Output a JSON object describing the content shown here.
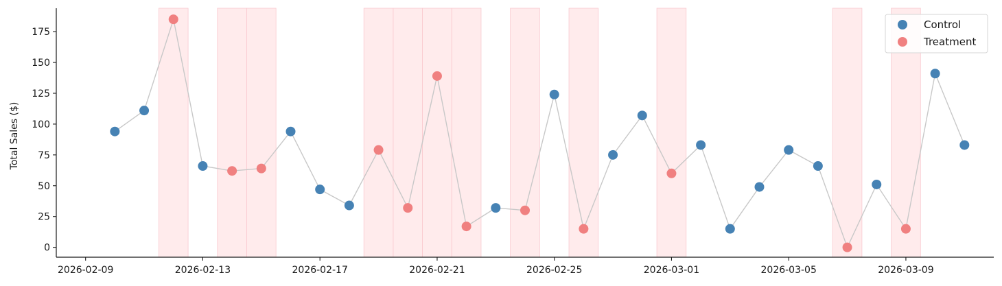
{
  "chart_data": {
    "type": "scatter",
    "title": "",
    "xlabel": "",
    "ylabel": "Total Sales ($)",
    "ylim": [
      -8,
      194
    ],
    "yticks": [
      0,
      25,
      50,
      75,
      100,
      125,
      150,
      175
    ],
    "xlim": [
      "2026-02-08",
      "2026-03-12"
    ],
    "xticks": [
      "2026-02-09",
      "2026-02-13",
      "2026-02-17",
      "2026-02-21",
      "2026-02-25",
      "2026-03-01",
      "2026-03-05",
      "2026-03-09"
    ],
    "grid": false,
    "legend_position": "top-right",
    "connector_line": true,
    "shaded_groups": [
      "Treatment"
    ],
    "colors": {
      "Control": "#4682b4",
      "Treatment": "#f08080",
      "connector": "#c8c8c8",
      "shade": "#ffe4e6"
    },
    "series": [
      {
        "name": "Control",
        "marker": "circle"
      },
      {
        "name": "Treatment",
        "marker": "circle"
      }
    ],
    "points": [
      {
        "date": "2026-02-10",
        "group": "Control",
        "value": 94
      },
      {
        "date": "2026-02-11",
        "group": "Control",
        "value": 111
      },
      {
        "date": "2026-02-12",
        "group": "Treatment",
        "value": 185
      },
      {
        "date": "2026-02-13",
        "group": "Control",
        "value": 66
      },
      {
        "date": "2026-02-14",
        "group": "Treatment",
        "value": 62
      },
      {
        "date": "2026-02-15",
        "group": "Treatment",
        "value": 64
      },
      {
        "date": "2026-02-16",
        "group": "Control",
        "value": 94
      },
      {
        "date": "2026-02-17",
        "group": "Control",
        "value": 47
      },
      {
        "date": "2026-02-18",
        "group": "Control",
        "value": 34
      },
      {
        "date": "2026-02-19",
        "group": "Treatment",
        "value": 79
      },
      {
        "date": "2026-02-20",
        "group": "Treatment",
        "value": 32
      },
      {
        "date": "2026-02-21",
        "group": "Treatment",
        "value": 139
      },
      {
        "date": "2026-02-22",
        "group": "Treatment",
        "value": 17
      },
      {
        "date": "2026-02-23",
        "group": "Control",
        "value": 32
      },
      {
        "date": "2026-02-24",
        "group": "Treatment",
        "value": 30
      },
      {
        "date": "2026-02-25",
        "group": "Control",
        "value": 124
      },
      {
        "date": "2026-02-26",
        "group": "Treatment",
        "value": 15
      },
      {
        "date": "2026-02-27",
        "group": "Control",
        "value": 75
      },
      {
        "date": "2026-02-28",
        "group": "Control",
        "value": 107
      },
      {
        "date": "2026-03-01",
        "group": "Treatment",
        "value": 60
      },
      {
        "date": "2026-03-02",
        "group": "Control",
        "value": 83
      },
      {
        "date": "2026-03-03",
        "group": "Control",
        "value": 15
      },
      {
        "date": "2026-03-04",
        "group": "Control",
        "value": 49
      },
      {
        "date": "2026-03-05",
        "group": "Control",
        "value": 79
      },
      {
        "date": "2026-03-06",
        "group": "Control",
        "value": 66
      },
      {
        "date": "2026-03-07",
        "group": "Treatment",
        "value": 0
      },
      {
        "date": "2026-03-08",
        "group": "Control",
        "value": 51
      },
      {
        "date": "2026-03-09",
        "group": "Treatment",
        "value": 15
      },
      {
        "date": "2026-03-10",
        "group": "Control",
        "value": 141
      },
      {
        "date": "2026-03-11",
        "group": "Control",
        "value": 83
      }
    ]
  }
}
